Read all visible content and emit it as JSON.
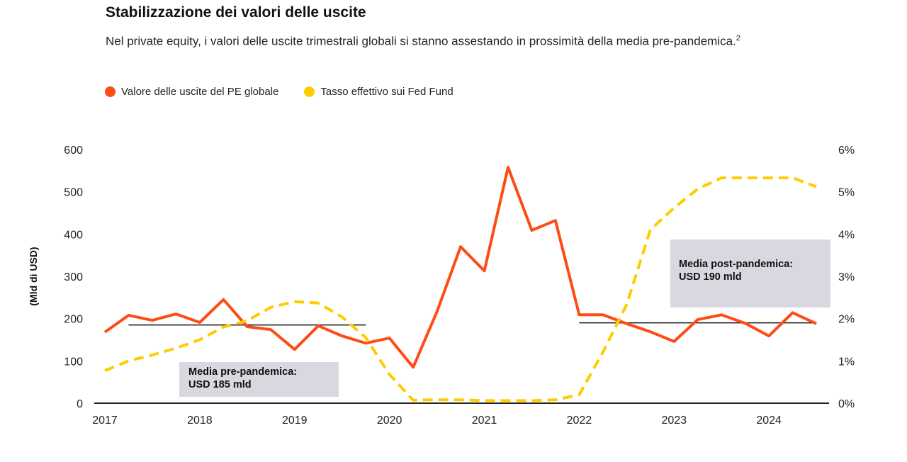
{
  "title": "Stabilizzazione dei valori delle uscite",
  "subtitle": "Nel private equity, i valori delle uscite trimestrali globali si stanno assestando in prossimità della media pre-pandemica.",
  "subtitle_footnote": "2",
  "colors": {
    "exits": "#ff4b14",
    "fed": "#ffcc00",
    "annotation_bg": "#d9d8e0"
  },
  "chart_data": {
    "type": "line",
    "title": "Stabilizzazione dei valori delle uscite",
    "ylabel": "(Mld di USD)",
    "ylim": [
      0,
      600
    ],
    "y2lim": [
      0,
      6
    ],
    "yticks": [
      "0",
      "100",
      "200",
      "300",
      "400",
      "500",
      "600"
    ],
    "y2ticks": [
      "0%",
      "1%",
      "2%",
      "3%",
      "4%",
      "5%",
      "6%"
    ],
    "xticks": [
      "2017",
      "2018",
      "2019",
      "2020",
      "2021",
      "2022",
      "2023",
      "2024"
    ],
    "legend_position": "top-left",
    "grid": false,
    "x": [
      "2017-Q1",
      "2017-Q2",
      "2017-Q3",
      "2017-Q4",
      "2018-Q1",
      "2018-Q2",
      "2018-Q3",
      "2018-Q4",
      "2019-Q1",
      "2019-Q2",
      "2019-Q3",
      "2019-Q4",
      "2020-Q1",
      "2020-Q2",
      "2020-Q3",
      "2020-Q4",
      "2021-Q1",
      "2021-Q2",
      "2021-Q3",
      "2021-Q4",
      "2022-Q1",
      "2022-Q2",
      "2022-Q3",
      "2022-Q4",
      "2023-Q1",
      "2023-Q2",
      "2023-Q3",
      "2023-Q4",
      "2024-Q1",
      "2024-Q2",
      "2024-Q3"
    ],
    "series": [
      {
        "name": "Valore delle uscite del PE globale",
        "axis": "left",
        "style": "solid",
        "values": [
          168,
          208,
          196,
          211,
          191,
          245,
          181,
          174,
          127,
          183,
          159,
          142,
          154,
          85,
          216,
          370,
          313,
          558,
          409,
          432,
          209,
          209,
          188,
          169,
          146,
          198,
          209,
          189,
          159,
          214,
          188
        ]
      },
      {
        "name": "Tasso effettivo sui Fed Fund",
        "axis": "right",
        "style": "dashed",
        "values": [
          0.77,
          1.0,
          1.14,
          1.3,
          1.5,
          1.8,
          1.95,
          2.27,
          2.4,
          2.37,
          2.04,
          1.55,
          0.68,
          0.07,
          0.08,
          0.08,
          0.06,
          0.06,
          0.06,
          0.08,
          0.2,
          1.21,
          2.33,
          4.1,
          4.62,
          5.07,
          5.33,
          5.33,
          5.33,
          5.33,
          5.12
        ]
      }
    ],
    "reference_lines": [
      {
        "label": "Media pre-pandemica:",
        "value_label": "USD 185 mld",
        "value": 185,
        "from": "2017-Q2",
        "to": "2019-Q4"
      },
      {
        "label": "Media post-pandemica:",
        "value_label": "USD 190 mld",
        "value": 190,
        "from": "2022-Q1",
        "to": "2024-Q3"
      }
    ]
  }
}
